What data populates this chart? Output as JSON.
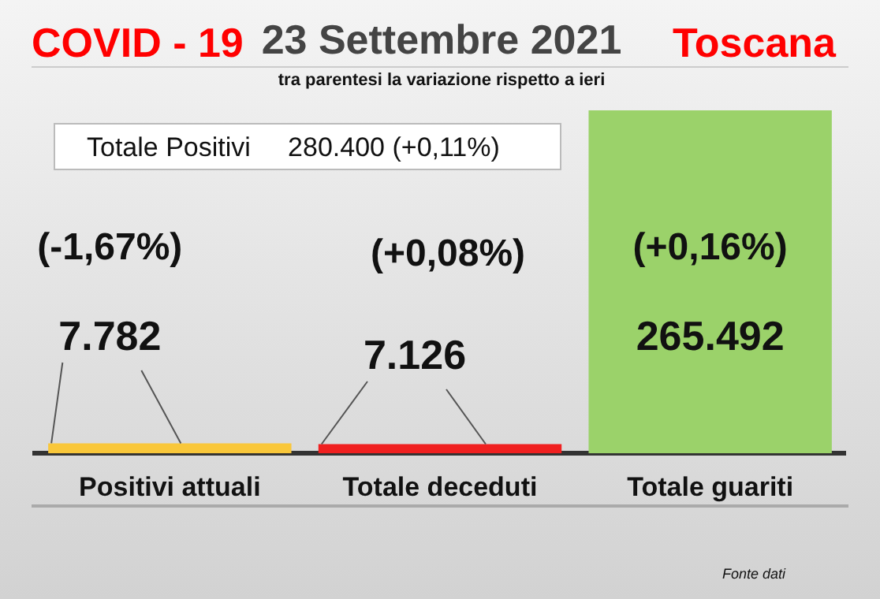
{
  "chart_data": {
    "type": "bar",
    "title": "23 Settembre 2021",
    "subtitle": "tra parentesi la variazione rispetto a ieri",
    "categories": [
      "Positivi attuali",
      "Totale deceduti",
      "Totale guariti"
    ],
    "values": [
      7782,
      7126,
      265492
    ],
    "colors": [
      "#f9c73a",
      "#f02020",
      "#9bd26a"
    ],
    "value_labels": [
      "7.782",
      "7.126",
      "265.492"
    ],
    "ylim": [
      0,
      265492
    ],
    "tick_labels": "x",
    "grid": false,
    "legend": false,
    "annotations": [
      "COVID - 19",
      "Toscana",
      "Totale Positivi     280.400 (+0,11%)",
      "(-1,67%)",
      "(+0,08%)",
      "(+0,16%)",
      "Fonte dati"
    ]
  }
}
